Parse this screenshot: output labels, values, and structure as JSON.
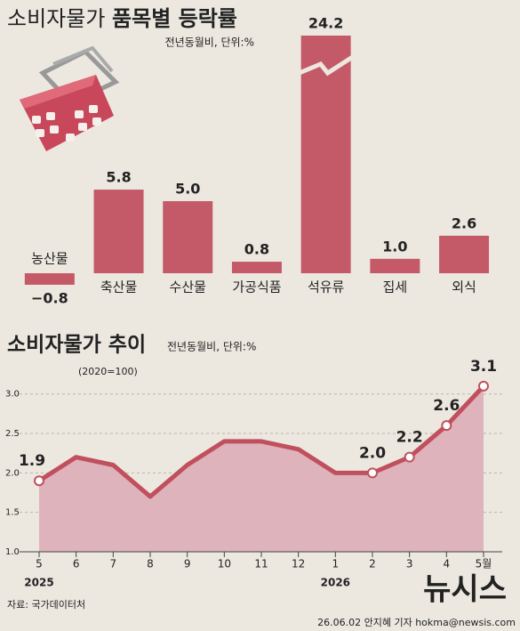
{
  "chart_data": [
    {
      "type": "bar",
      "title": [
        "소비자물가 ",
        "품목별 등락률"
      ],
      "subtitle": "전년동월비, 단위:%",
      "categories": [
        "농산물",
        "축산물",
        "수산물",
        "가공식품",
        "석유류",
        "집세",
        "외식"
      ],
      "values": [
        -0.8,
        5.8,
        5.0,
        0.8,
        24.2,
        1.0,
        2.6
      ],
      "value_labels": [
        "−0.8",
        "5.8",
        "5.0",
        "0.8",
        "24.2",
        "1.0",
        "2.6"
      ],
      "color": "#c45a68"
    },
    {
      "type": "line",
      "title": "소비자물가 추이",
      "subtitle": "전년동월비, 단위:%",
      "note": "(2020=100)",
      "categories": [
        "5",
        "6",
        "7",
        "8",
        "9",
        "10",
        "11",
        "12",
        "1",
        "2",
        "3",
        "4",
        "5월"
      ],
      "years": [
        "2025",
        null,
        null,
        null,
        null,
        null,
        null,
        null,
        "2026",
        null,
        null,
        null,
        null
      ],
      "series": [
        {
          "color": "#c0505e",
          "values": [
            1.9,
            2.2,
            2.1,
            1.7,
            2.1,
            2.4,
            2.4,
            2.3,
            2.0,
            2.0,
            2.2,
            2.6,
            3.1
          ],
          "value_labels": [
            "1.9",
            null,
            null,
            null,
            null,
            null,
            null,
            null,
            null,
            "2.0",
            "2.2",
            "2.6",
            "3.1"
          ]
        }
      ],
      "ylim": [
        1.0,
        3.2
      ],
      "yticks": [
        {
          "value": 1.0,
          "label": "1.0"
        },
        {
          "value": 1.5,
          "label": "1.5"
        },
        {
          "value": 2.0,
          "label": "2.0"
        },
        {
          "value": 2.5,
          "label": "2.5"
        },
        {
          "value": 3.0,
          "label": "3.0"
        }
      ],
      "grid": true,
      "area_color": "#deb3bb"
    }
  ],
  "source": "자료: 국가데이터처",
  "credit": "26.06.02 안지혜 기자 hokma@newsis.com",
  "logo": "뉴시스"
}
